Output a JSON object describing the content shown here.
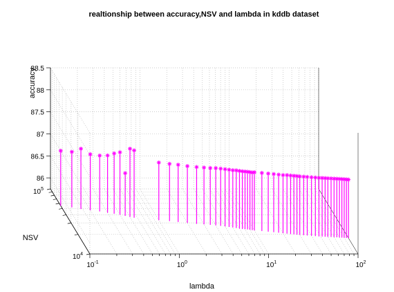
{
  "chart_data": {
    "type": "stem3",
    "title": "realtionship between accuracy,NSV and lambda in kddb dataset",
    "xlabel": "lambda",
    "ylabel": "NSV",
    "zlabel": "accuracy",
    "x_scale": "log",
    "y_scale": "log",
    "xlim": [
      0.1,
      100
    ],
    "ylim": [
      10000,
      100000
    ],
    "zlim": [
      85.75,
      88.5
    ],
    "x_ticks": [
      {
        "base": "10",
        "exp": "-1",
        "value": 0.1
      },
      {
        "base": "10",
        "exp": "0",
        "value": 1
      },
      {
        "base": "10",
        "exp": "1",
        "value": 10
      },
      {
        "base": "10",
        "exp": "2",
        "value": 100
      }
    ],
    "y_ticks": [
      {
        "base": "10",
        "exp": "4",
        "value": 10000
      },
      {
        "base": "10",
        "exp": "5",
        "value": 100000
      }
    ],
    "z_ticks": [
      "86",
      "86.5",
      "87",
      "87.5",
      "88",
      "88.5"
    ],
    "grid": true,
    "marker": "*",
    "color": "#ff00ff",
    "series": [
      {
        "lambda": [
          0.1,
          0.13,
          0.16,
          0.2,
          0.25,
          0.3,
          0.35,
          0.4,
          0.45,
          0.5,
          0.55,
          1,
          1.3,
          1.6,
          2,
          2.5,
          3,
          3.5,
          4,
          4.5,
          5,
          5.5,
          6,
          6.5,
          7,
          7.5,
          8,
          8.5,
          9,
          9.5,
          10,
          12,
          14,
          16,
          18,
          20,
          22,
          24,
          26,
          28,
          30,
          33,
          36,
          40,
          44,
          48,
          52,
          56,
          60,
          65,
          70,
          75,
          80,
          85,
          90,
          95,
          100
        ],
        "nsv": [
          55000,
          52000,
          49000,
          47000,
          45000,
          43000,
          41500,
          40000,
          38500,
          37000,
          36000,
          33000,
          32000,
          31000,
          30000,
          29000,
          28500,
          28000,
          27500,
          27000,
          26500,
          26000,
          25500,
          25000,
          24500,
          24200,
          24000,
          23800,
          23500,
          23200,
          23000,
          22500,
          22000,
          21600,
          21200,
          20800,
          20500,
          20200,
          20000,
          19800,
          19600,
          19400,
          19200,
          19000,
          18800,
          18600,
          18500,
          18400,
          18300,
          18200,
          18100,
          18000,
          17900,
          17800,
          17700,
          17600,
          17500
        ],
        "accuracy": [
          87.0,
          87.01,
          87.12,
          87.02,
          87.02,
          87.05,
          87.12,
          87.17,
          86.72,
          87.3,
          87.28,
          87.06,
          87.05,
          87.05,
          87.04,
          87.04,
          87.04,
          87.04,
          87.05,
          87.05,
          87.05,
          87.05,
          87.05,
          87.06,
          87.06,
          87.06,
          87.06,
          87.06,
          87.06,
          87.06,
          87.07,
          87.07,
          87.07,
          87.07,
          87.07,
          87.07,
          87.08,
          87.08,
          87.08,
          87.08,
          87.08,
          87.08,
          87.08,
          87.08,
          87.08,
          87.08,
          87.08,
          87.08,
          87.08,
          87.08,
          87.08,
          87.08,
          87.08,
          87.08,
          87.08,
          87.08,
          87.08
        ]
      }
    ]
  }
}
